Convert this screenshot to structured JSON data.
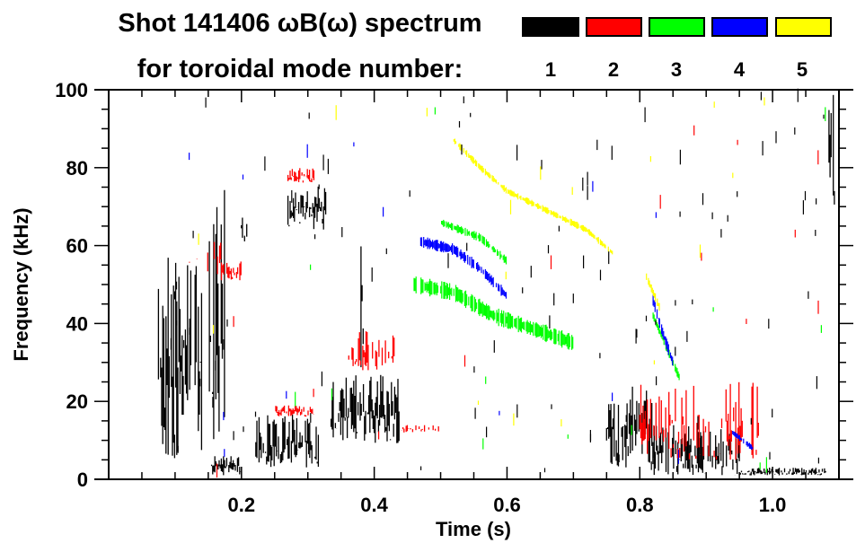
{
  "chart_data": {
    "type": "heatmap",
    "title_line1": "Shot 141406 ωB(ω) spectrum",
    "title_line2": "for toroidal mode number:",
    "xlabel": "Time (s)",
    "ylabel": "Frequency (kHz)",
    "xlim": [
      0.0,
      1.1
    ],
    "ylim": [
      0,
      100
    ],
    "x_ticks": [
      {
        "value": 0.2,
        "label": "0.2"
      },
      {
        "value": 0.4,
        "label": "0.4"
      },
      {
        "value": 0.6,
        "label": "0.6"
      },
      {
        "value": 0.8,
        "label": "0.8"
      },
      {
        "value": 1.0,
        "label": "1.0"
      }
    ],
    "x_minor_step": 0.05,
    "y_ticks": [
      {
        "value": 0,
        "label": "0"
      },
      {
        "value": 20,
        "label": "20"
      },
      {
        "value": 40,
        "label": "40"
      },
      {
        "value": 60,
        "label": "60"
      },
      {
        "value": 80,
        "label": "80"
      },
      {
        "value": 100,
        "label": "100"
      }
    ],
    "y_minor_step": 5,
    "legend": {
      "placement": "top-right",
      "entries": [
        {
          "mode": "1",
          "color": "#000000"
        },
        {
          "mode": "2",
          "color": "#ff0000"
        },
        {
          "mode": "3",
          "color": "#00ff00"
        },
        {
          "mode": "4",
          "color": "#0000ff"
        },
        {
          "mode": "5",
          "color": "#ffff00"
        }
      ]
    },
    "features": [
      {
        "mode": 1,
        "name": "early-burst",
        "t": [
          0.075,
          0.14
        ],
        "f": [
          4,
          57
        ],
        "density": 0.85
      },
      {
        "mode": 1,
        "name": "burst-0.15",
        "t": [
          0.15,
          0.175
        ],
        "f": [
          2,
          75
        ],
        "density": 0.6
      },
      {
        "mode": 1,
        "name": "low-0.16",
        "t": [
          0.155,
          0.2
        ],
        "f": [
          1,
          6
        ],
        "density": 0.9
      },
      {
        "mode": 1,
        "name": "spike-0.2",
        "t": [
          0.195,
          0.21
        ],
        "f": [
          60,
          70
        ],
        "density": 0.8
      },
      {
        "mode": 1,
        "name": "blob-0.25",
        "t": [
          0.22,
          0.32
        ],
        "f": [
          3,
          17
        ],
        "density": 0.85
      },
      {
        "mode": 1,
        "name": "blob-0.3-high",
        "t": [
          0.27,
          0.33
        ],
        "f": [
          64,
          76
        ],
        "density": 0.9
      },
      {
        "mode": 1,
        "name": "blob-0.38",
        "t": [
          0.335,
          0.44
        ],
        "f": [
          9,
          27
        ],
        "density": 0.9
      },
      {
        "mode": 1,
        "name": "column-0.4",
        "t": [
          0.38,
          0.39
        ],
        "f": [
          15,
          80
        ],
        "density": 0.3
      },
      {
        "mode": 1,
        "name": "blob-0.8",
        "t": [
          0.75,
          0.82
        ],
        "f": [
          3,
          24
        ],
        "density": 0.85
      },
      {
        "mode": 1,
        "name": "blob-0.9",
        "t": [
          0.82,
          0.95
        ],
        "f": [
          1,
          14
        ],
        "density": 0.85
      },
      {
        "mode": 1,
        "name": "tail-1.0",
        "t": [
          0.95,
          1.08
        ],
        "f": [
          1,
          3
        ],
        "density": 0.9
      },
      {
        "mode": 1,
        "name": "right-edge",
        "t": [
          1.085,
          1.095
        ],
        "f": [
          68,
          100
        ],
        "density": 0.8
      },
      {
        "mode": 2,
        "name": "red-0.15",
        "t": [
          0.12,
          0.17
        ],
        "f": [
          52,
          62
        ],
        "density": 0.35
      },
      {
        "mode": 2,
        "name": "red-0.17",
        "t": [
          0.17,
          0.2
        ],
        "f": [
          51,
          56
        ],
        "density": 0.8
      },
      {
        "mode": 2,
        "name": "red-0.29",
        "t": [
          0.27,
          0.31
        ],
        "f": [
          76,
          80
        ],
        "density": 0.85
      },
      {
        "mode": 2,
        "name": "red-0.26",
        "t": [
          0.25,
          0.31
        ],
        "f": [
          16,
          19
        ],
        "density": 0.85
      },
      {
        "mode": 2,
        "name": "red-0.4",
        "t": [
          0.36,
          0.43
        ],
        "f": [
          28,
          38
        ],
        "density": 0.5
      },
      {
        "mode": 2,
        "name": "red-0.45",
        "t": [
          0.44,
          0.5
        ],
        "f": [
          12,
          14
        ],
        "density": 0.5
      },
      {
        "mode": 2,
        "name": "red-0.83",
        "t": [
          0.8,
          0.98
        ],
        "f": [
          5,
          25
        ],
        "density": 0.6
      }
    ],
    "chirps": [
      {
        "mode": 3,
        "name": "green-main",
        "points": [
          [
            0.46,
            50
          ],
          [
            0.52,
            48
          ],
          [
            0.58,
            42
          ],
          [
            0.65,
            38
          ],
          [
            0.7,
            35
          ]
        ],
        "width_khz": 3
      },
      {
        "mode": 3,
        "name": "green-upper",
        "points": [
          [
            0.5,
            66
          ],
          [
            0.56,
            62
          ],
          [
            0.6,
            56
          ]
        ],
        "width_khz": 1.5
      },
      {
        "mode": 3,
        "name": "green-0.82",
        "points": [
          [
            0.82,
            42
          ],
          [
            0.84,
            34
          ],
          [
            0.86,
            26
          ]
        ],
        "width_khz": 1.5
      },
      {
        "mode": 4,
        "name": "blue-main",
        "points": [
          [
            0.47,
            61
          ],
          [
            0.52,
            59
          ],
          [
            0.56,
            54
          ],
          [
            0.6,
            47
          ]
        ],
        "width_khz": 2
      },
      {
        "mode": 4,
        "name": "blue-0.82",
        "points": [
          [
            0.82,
            46
          ],
          [
            0.83,
            40
          ],
          [
            0.85,
            30
          ]
        ],
        "width_khz": 2
      },
      {
        "mode": 4,
        "name": "blue-tail",
        "points": [
          [
            0.94,
            12
          ],
          [
            0.97,
            8
          ]
        ],
        "width_khz": 1
      },
      {
        "mode": 5,
        "name": "yellow-main",
        "points": [
          [
            0.52,
            87
          ],
          [
            0.56,
            80
          ],
          [
            0.6,
            74
          ],
          [
            0.66,
            69
          ],
          [
            0.72,
            64
          ],
          [
            0.76,
            58
          ]
        ],
        "width_khz": 1.2
      },
      {
        "mode": 5,
        "name": "yellow-0.82",
        "points": [
          [
            0.81,
            52
          ],
          [
            0.83,
            44
          ]
        ],
        "width_khz": 1.5
      }
    ]
  }
}
